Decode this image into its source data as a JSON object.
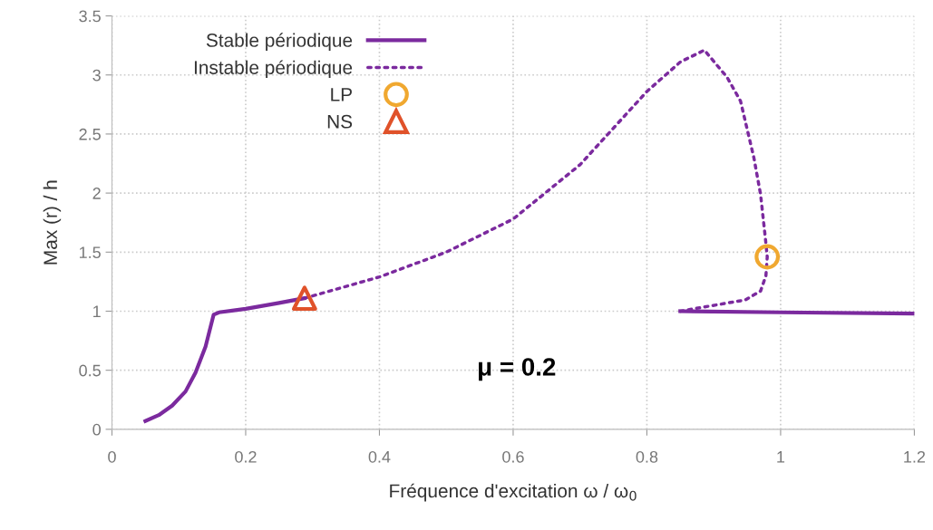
{
  "chart_data": {
    "type": "line",
    "xlabel": "Fréquence d'excitation ω / ω$_{0}$",
    "ylabel": "Max (r) / h",
    "annotations": [
      "μ = 0.2"
    ],
    "series": [
      {
        "name": "Stable périodique",
        "color": "#7b2a9e",
        "line_style": "solid",
        "marker": "none",
        "x": [
          0.05,
          0.07,
          0.09,
          0.11,
          0.125,
          0.14,
          0.152,
          0.16,
          0.2,
          0.25,
          0.288,
          0.3,
          0.85,
          1.0,
          1.2
        ],
        "values": [
          0.07,
          0.12,
          0.2,
          0.32,
          0.48,
          0.7,
          0.97,
          0.99,
          1.02,
          1.07,
          1.11,
          null,
          1.0,
          0.99,
          0.98
        ]
      },
      {
        "name": "Instable périodique",
        "color": "#7b2a9e",
        "line_style": "dotted",
        "marker": "none",
        "x": [
          0.288,
          0.4,
          0.5,
          0.6,
          0.7,
          0.8,
          0.85,
          0.886,
          0.92,
          0.94,
          0.96,
          0.97,
          0.977,
          0.98,
          0.978,
          0.97,
          0.947,
          0.88,
          0.85
        ],
        "values": [
          1.11,
          1.29,
          1.5,
          1.78,
          2.24,
          2.86,
          3.11,
          3.21,
          2.98,
          2.78,
          2.3,
          1.99,
          1.63,
          1.46,
          1.3,
          1.17,
          1.095,
          1.03,
          1.0
        ]
      },
      {
        "name": "LP",
        "type": "scatter",
        "color": "#f0a830",
        "marker": "circle",
        "x": [
          0.98
        ],
        "values": [
          1.46
        ]
      },
      {
        "name": "NS",
        "type": "scatter",
        "color": "#e0522a",
        "marker": "triangle",
        "x": [
          0.288
        ],
        "values": [
          1.11
        ]
      }
    ],
    "xlim": [
      0,
      1.2
    ],
    "xticks": [
      0,
      0.2,
      0.4,
      0.6,
      0.8,
      1,
      1.2
    ],
    "ylim": [
      0,
      3.5
    ],
    "yticks": [
      0,
      0.5,
      1,
      1.5,
      2,
      2.5,
      3,
      3.5
    ],
    "grid": true,
    "legend": "top left"
  }
}
